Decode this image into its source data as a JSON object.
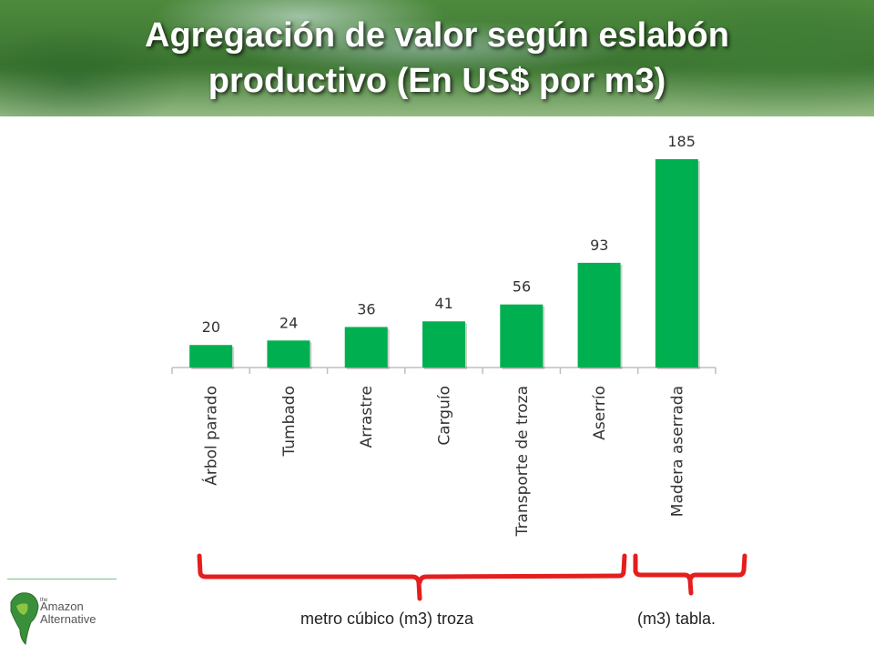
{
  "title": {
    "line1": "Agregación de valor según eslabón",
    "line2": "productivo (En US$ por m3)"
  },
  "chart_data": {
    "type": "bar",
    "categories": [
      "Árbol parado",
      "Tumbado",
      "Arrastre",
      "Carguío",
      "Transporte de troza",
      "Aserrío",
      "Madera aserrada"
    ],
    "values": [
      20,
      24,
      36,
      41,
      56,
      93,
      185
    ],
    "data_labels": [
      "20",
      "24",
      "36",
      "41",
      "56",
      "93",
      "185"
    ],
    "title": "",
    "xlabel": "",
    "ylabel": "",
    "ylim": [
      0,
      185
    ],
    "grid": false,
    "legend": "none",
    "bar_color": "#00b050"
  },
  "annotations": {
    "troza_label": "metro cúbico (m3) troza",
    "tabla_label": "(m3) tabla.",
    "brace_color": "#e41e1e"
  },
  "logo": {
    "small_text": "the",
    "line1": "Amazon",
    "line2": "Alternative"
  }
}
